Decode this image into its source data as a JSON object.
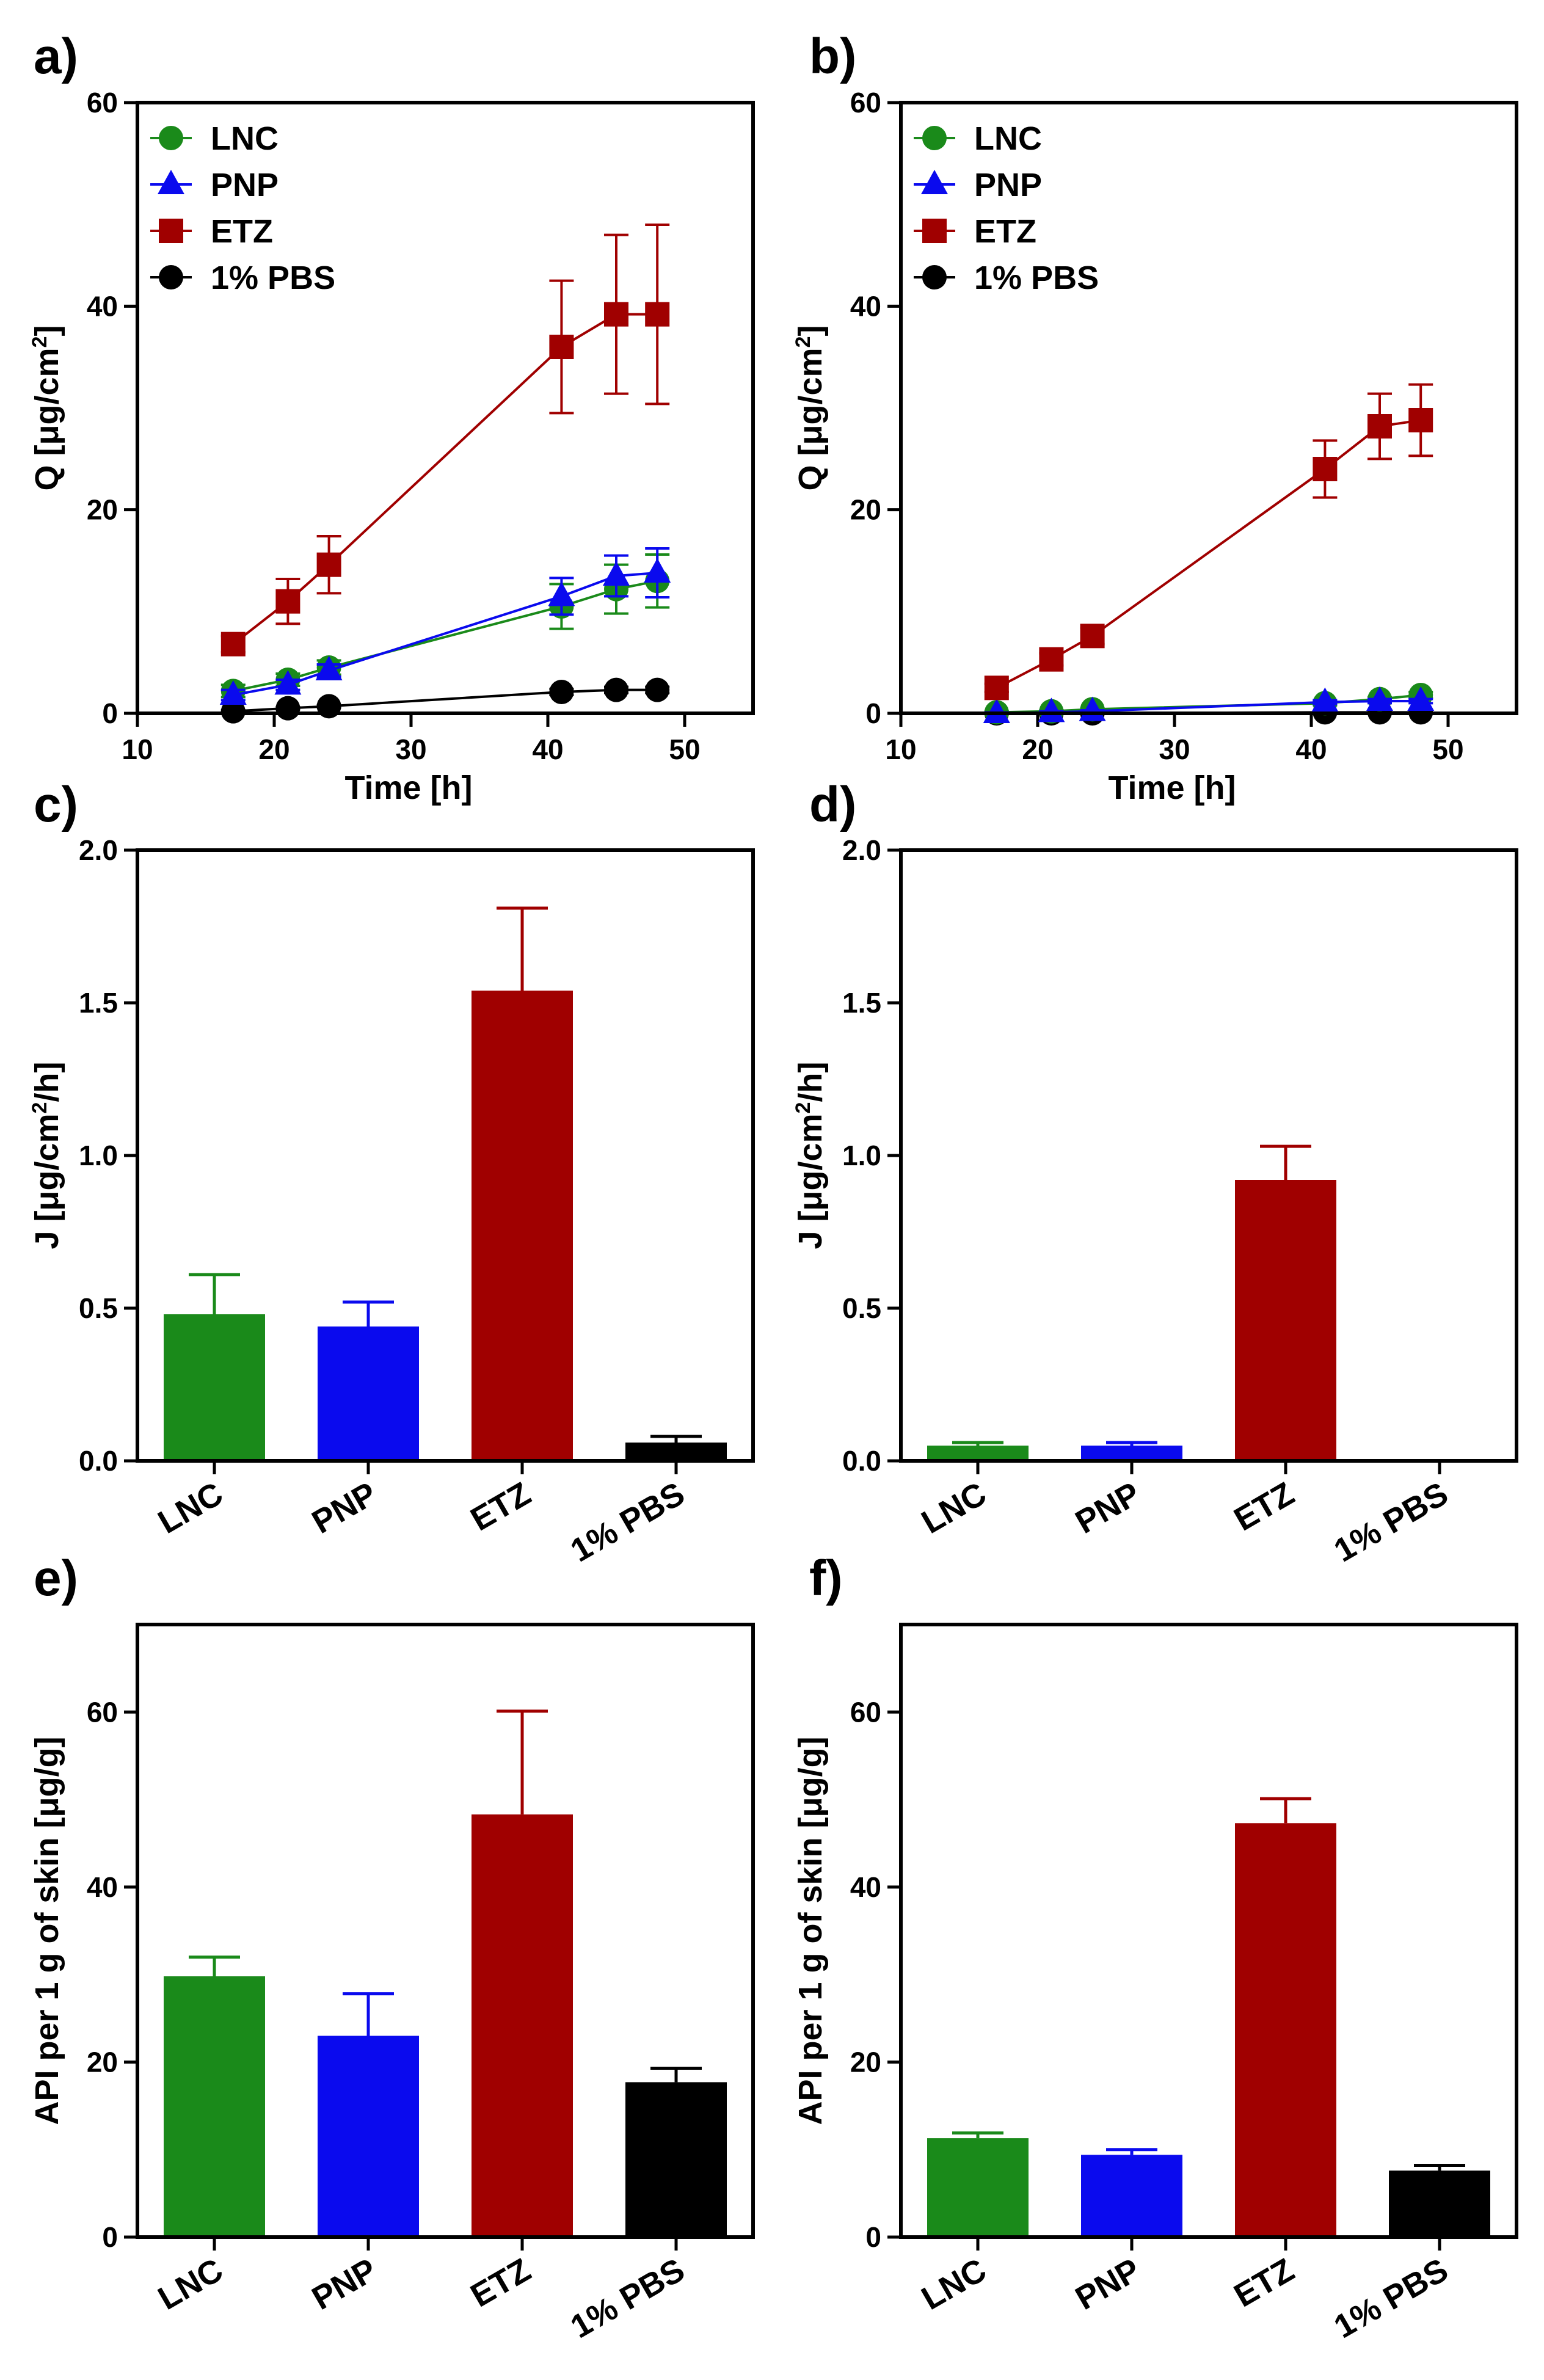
{
  "colors": {
    "LNC": "#1a8a1a",
    "PNP": "#0a0aee",
    "ETZ": "#a00000",
    "PBS": "#000000"
  },
  "chart_data": [
    {
      "id": "a",
      "panel_label": "a)",
      "type": "line",
      "xlabel": "Time [h]",
      "ylabel": "Q [μg/cm²]",
      "xlim": [
        10,
        55
      ],
      "ylim": [
        0,
        60
      ],
      "xticks": [
        "10",
        "20",
        "30",
        "40",
        "50"
      ],
      "yticks": [
        "0",
        "20",
        "40",
        "60"
      ],
      "legend_position": "top-left",
      "x": [
        17,
        21,
        24,
        41,
        45,
        48
      ],
      "series": [
        {
          "name": "LNC",
          "marker": "circle",
          "values": [
            2.2,
            3.3,
            4.5,
            10.5,
            12.2,
            13.0
          ],
          "errors": [
            0.6,
            0.6,
            0.7,
            2.2,
            2.4,
            2.6
          ]
        },
        {
          "name": "PNP",
          "marker": "triangle",
          "values": [
            1.8,
            2.8,
            4.2,
            11.5,
            13.5,
            13.8
          ],
          "errors": [
            0.5,
            0.5,
            0.6,
            1.8,
            2.0,
            2.4
          ]
        },
        {
          "name": "ETZ",
          "marker": "square",
          "values": [
            6.8,
            11.0,
            14.6,
            36.0,
            39.2,
            39.2
          ],
          "errors": [
            0.8,
            2.2,
            2.8,
            6.5,
            7.8,
            8.8
          ]
        },
        {
          "name": "1% PBS",
          "marker": "circle",
          "values": [
            0.2,
            0.5,
            0.7,
            2.1,
            2.3,
            2.3
          ],
          "errors": [
            0.1,
            0.1,
            0.1,
            0.3,
            0.3,
            0.3
          ]
        }
      ]
    },
    {
      "id": "b",
      "panel_label": "b)",
      "type": "line",
      "xlabel": "Time [h]",
      "ylabel": "Q [μg/cm²]",
      "xlim": [
        10,
        55
      ],
      "ylim": [
        0,
        60
      ],
      "xticks": [
        "10",
        "20",
        "30",
        "40",
        "50"
      ],
      "yticks": [
        "0",
        "20",
        "40",
        "60"
      ],
      "legend_position": "top-left",
      "x": [
        17,
        21,
        24,
        41,
        45,
        48
      ],
      "series": [
        {
          "name": "LNC",
          "marker": "circle",
          "values": [
            0.1,
            0.2,
            0.4,
            1.0,
            1.4,
            1.8
          ],
          "errors": [
            0.1,
            0.1,
            0.1,
            0.2,
            0.2,
            0.3
          ]
        },
        {
          "name": "PNP",
          "marker": "triangle",
          "values": [
            0.0,
            0.1,
            0.2,
            1.1,
            1.2,
            1.2
          ],
          "errors": [
            0.1,
            0.1,
            0.1,
            0.2,
            0.2,
            0.2
          ]
        },
        {
          "name": "ETZ",
          "marker": "square",
          "values": [
            2.5,
            5.3,
            7.6,
            24.0,
            28.2,
            28.8
          ],
          "errors": [
            0.4,
            0.6,
            0.8,
            2.8,
            3.2,
            3.5
          ]
        },
        {
          "name": "1% PBS",
          "marker": "circle",
          "values": [
            0.0,
            0.0,
            0.0,
            0.1,
            0.1,
            0.1
          ],
          "errors": [
            0.0,
            0.0,
            0.0,
            0.0,
            0.0,
            0.0
          ]
        }
      ]
    },
    {
      "id": "c",
      "panel_label": "c)",
      "type": "bar",
      "ylabel": "J [μg/cm²/h]",
      "ylim": [
        0,
        2.0
      ],
      "yticks": [
        "0.0",
        "0.5",
        "1.0",
        "1.5",
        "2.0"
      ],
      "categories": [
        "LNC",
        "PNP",
        "ETZ",
        "1% PBS"
      ],
      "values": [
        0.48,
        0.44,
        1.54,
        0.06
      ],
      "errors": [
        0.13,
        0.08,
        0.27,
        0.02
      ]
    },
    {
      "id": "d",
      "panel_label": "d)",
      "type": "bar",
      "ylabel": "J [μg/cm²/h]",
      "ylim": [
        0,
        2.0
      ],
      "yticks": [
        "0.0",
        "0.5",
        "1.0",
        "1.5",
        "2.0"
      ],
      "categories": [
        "LNC",
        "PNP",
        "ETZ",
        "1% PBS"
      ],
      "values": [
        0.05,
        0.05,
        0.92,
        0.0
      ],
      "errors": [
        0.01,
        0.01,
        0.11,
        0.0
      ]
    },
    {
      "id": "e",
      "panel_label": "e)",
      "type": "bar",
      "ylabel": "API per 1 g of skin [μg/g]",
      "ylim": [
        0,
        70
      ],
      "yticks": [
        "0",
        "20",
        "40",
        "60"
      ],
      "categories": [
        "LNC",
        "PNP",
        "ETZ",
        "1% PBS"
      ],
      "values": [
        29.8,
        23.0,
        48.3,
        17.7
      ],
      "errors": [
        2.2,
        4.8,
        11.8,
        1.6
      ]
    },
    {
      "id": "f",
      "panel_label": "f)",
      "type": "bar",
      "ylabel": "API per 1 g of skin [μg/g]",
      "ylim": [
        0,
        70
      ],
      "yticks": [
        "0",
        "20",
        "40",
        "60"
      ],
      "categories": [
        "LNC",
        "PNP",
        "ETZ",
        "1% PBS"
      ],
      "values": [
        11.3,
        9.4,
        47.3,
        7.6
      ],
      "errors": [
        0.6,
        0.6,
        2.8,
        0.6
      ]
    }
  ]
}
